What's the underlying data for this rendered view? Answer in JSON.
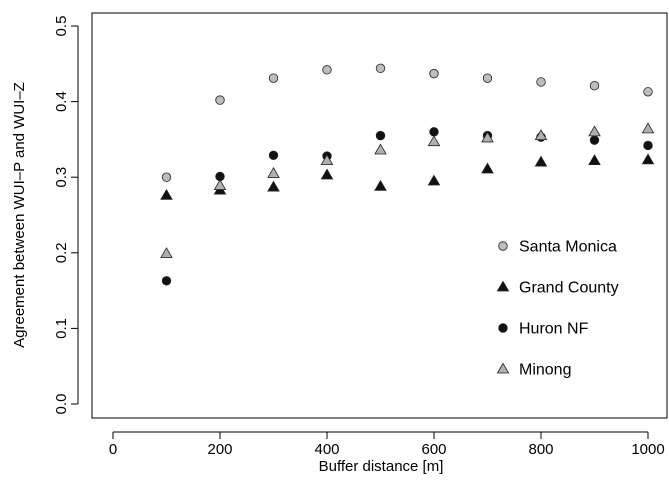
{
  "chart_data": {
    "type": "scatter",
    "title": "",
    "xlabel": "Buffer distance [m]",
    "ylabel": "Agreement between WUI–P and WUI–Z",
    "xlim": [
      0,
      1000
    ],
    "ylim": [
      0,
      0.5
    ],
    "x_ticks": [
      "0",
      "200",
      "400",
      "600",
      "800",
      "1000"
    ],
    "y_ticks": [
      "0.0",
      "0.1",
      "0.2",
      "0.3",
      "0.4",
      "0.5"
    ],
    "x": [
      100,
      200,
      300,
      400,
      500,
      600,
      700,
      800,
      900,
      1000
    ],
    "grid": false,
    "legend_position": "right",
    "series": [
      {
        "name": "Santa Monica",
        "marker": "circle",
        "fill": "#bdbdbd",
        "values": [
          0.3,
          0.402,
          0.431,
          0.442,
          0.444,
          0.437,
          0.431,
          0.426,
          0.421,
          0.413
        ]
      },
      {
        "name": "Grand County",
        "marker": "triangle",
        "fill": "#111111",
        "values": [
          0.276,
          0.283,
          0.287,
          0.303,
          0.288,
          0.295,
          0.311,
          0.32,
          0.322,
          0.323
        ]
      },
      {
        "name": "Huron NF",
        "marker": "circle",
        "fill": "#111111",
        "values": [
          0.163,
          0.301,
          0.329,
          0.328,
          0.355,
          0.36,
          0.355,
          0.353,
          0.349,
          0.342
        ]
      },
      {
        "name": "Minong",
        "marker": "triangle",
        "fill": "#b0b0b0",
        "values": [
          0.199,
          0.289,
          0.305,
          0.322,
          0.336,
          0.347,
          0.352,
          0.355,
          0.36,
          0.364
        ]
      }
    ]
  }
}
